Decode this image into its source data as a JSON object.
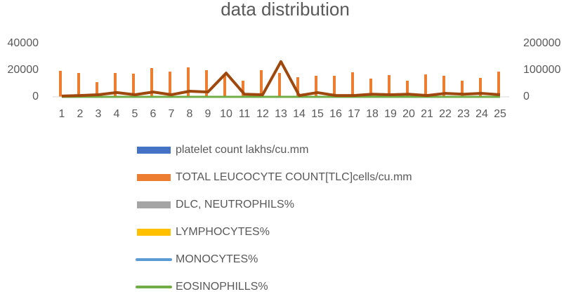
{
  "chart_data": {
    "type": "bar",
    "title": "data distribution",
    "categories": [
      "1",
      "2",
      "3",
      "4",
      "5",
      "6",
      "7",
      "8",
      "9",
      "10",
      "11",
      "12",
      "13",
      "14",
      "15",
      "16",
      "17",
      "18",
      "19",
      "20",
      "21",
      "22",
      "23",
      "24",
      "25"
    ],
    "ylim": [
      0,
      40000
    ],
    "yticks": [
      0,
      20000,
      40000
    ],
    "y2lim": [
      0,
      200000
    ],
    "y2ticks": [
      0,
      100000,
      200000
    ],
    "series": [
      {
        "name": "platelet count lakhs/cu.mm",
        "type": "bar",
        "color": "#4472c4",
        "values": [
          2,
          2,
          2,
          2,
          2,
          2,
          2,
          2,
          2,
          2,
          2,
          2,
          2,
          2,
          2,
          2,
          2,
          2,
          2,
          2,
          2,
          2,
          2,
          2,
          2
        ]
      },
      {
        "name": "TOTAL LEUCOCYTE COUNT[TLC]cells/cu.mm",
        "type": "bar",
        "color": "#ed7d31",
        "values": [
          19500,
          17900,
          11000,
          17900,
          17400,
          21600,
          18900,
          22100,
          20000,
          16300,
          12100,
          20000,
          17900,
          14700,
          15800,
          15800,
          18400,
          13700,
          16300,
          12100,
          16800,
          15800,
          12100,
          14200,
          18900
        ]
      },
      {
        "name": "DLC, NEUTROPHILS%",
        "type": "bar",
        "color": "#a5a5a5",
        "values": [
          60,
          60,
          60,
          60,
          60,
          60,
          60,
          60,
          60,
          60,
          60,
          60,
          60,
          60,
          60,
          60,
          60,
          60,
          60,
          60,
          60,
          60,
          60,
          60,
          60
        ]
      },
      {
        "name": "LYMPHOCYTES%",
        "type": "bar",
        "color": "#ffc000",
        "values": [
          30,
          30,
          30,
          30,
          30,
          30,
          30,
          30,
          30,
          30,
          30,
          30,
          30,
          30,
          30,
          30,
          30,
          30,
          30,
          30,
          30,
          30,
          30,
          30,
          30
        ]
      },
      {
        "name": "MONOCYTES%",
        "type": "line",
        "color": "#5b9bd5",
        "values": [
          5,
          5,
          5,
          5,
          5,
          5,
          5,
          5,
          5,
          5,
          5,
          5,
          5,
          5,
          5,
          5,
          5,
          5,
          5,
          5,
          5,
          5,
          5,
          5,
          5
        ]
      },
      {
        "name": "EOSINOPHILLS%",
        "type": "line",
        "color": "#70ad47",
        "values": [
          3,
          3,
          3,
          3,
          3,
          3,
          3,
          3,
          3,
          3,
          3,
          3,
          3,
          3,
          3,
          3,
          3,
          3,
          3,
          3,
          3,
          3,
          3,
          3,
          3
        ]
      },
      {
        "type": "line",
        "axis": "y2",
        "color": "#9e480e",
        "values": [
          3000,
          5000,
          8000,
          16000,
          8000,
          18000,
          8000,
          21000,
          18000,
          89000,
          10000,
          8000,
          132000,
          5000,
          16000,
          5000,
          5000,
          10000,
          8000,
          10000,
          5000,
          13000,
          10000,
          13000,
          8000
        ]
      }
    ]
  }
}
